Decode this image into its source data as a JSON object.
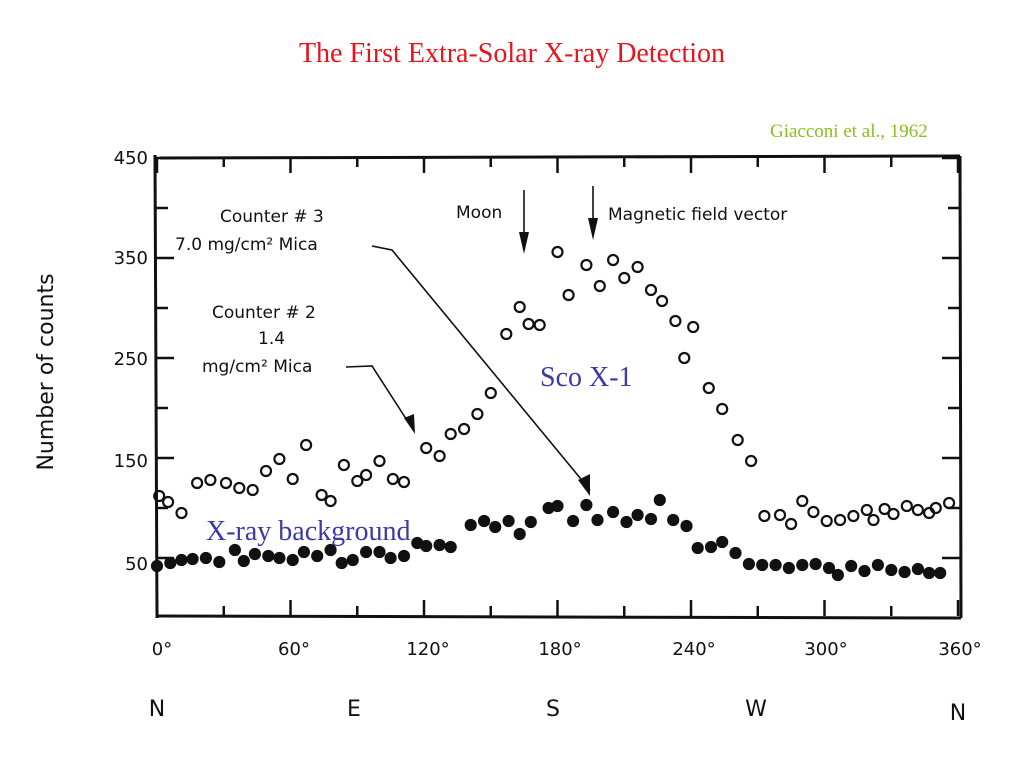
{
  "header": {
    "title": "The First Extra-Solar X-ray Detection",
    "credit": "Giacconi et al., 1962"
  },
  "chart_data": {
    "type": "scatter",
    "title": "The First Extra-Solar X-ray Detection",
    "xlabel": "",
    "ylabel": "Number of counts",
    "xlim": [
      0,
      360
    ],
    "ylim": [
      0,
      450
    ],
    "x_ticks": [
      "0°",
      "60°",
      "120°",
      "180°",
      "240°",
      "300°",
      "360°"
    ],
    "y_ticks": [
      "450",
      "350",
      "250",
      "150",
      "50"
    ],
    "compass_labels": [
      "N",
      "E",
      "S",
      "W",
      "N"
    ],
    "annotations": {
      "counter3_line1": "Counter # 3",
      "counter3_line2": "7.0 mg/cm² Mica",
      "counter2_line1": "Counter # 2",
      "counter2_line2": "1.4",
      "counter2_line3": "mg/cm² Mica",
      "moon": "Moon",
      "magnetic": "Magnetic field vector",
      "sco": "Sco X-1",
      "background": "X-ray background"
    },
    "series": [
      {
        "marker": "open-circle",
        "points": [
          [
            1,
            112
          ],
          [
            5,
            106
          ],
          [
            11,
            95
          ],
          [
            18,
            125
          ],
          [
            24,
            128
          ],
          [
            31,
            125
          ],
          [
            37,
            120
          ],
          [
            43,
            118
          ],
          [
            49,
            137
          ],
          [
            55,
            149
          ],
          [
            61,
            129
          ],
          [
            67,
            163
          ],
          [
            74,
            113
          ],
          [
            78,
            107
          ],
          [
            84,
            143
          ],
          [
            90,
            127
          ],
          [
            94,
            133
          ],
          [
            100,
            147
          ],
          [
            106,
            129
          ],
          [
            111,
            126
          ],
          [
            121,
            160
          ],
          [
            127,
            152
          ],
          [
            132,
            174
          ],
          [
            138,
            179
          ],
          [
            144,
            194
          ],
          [
            150,
            215
          ],
          [
            157,
            274
          ],
          [
            163,
            301
          ],
          [
            167,
            284
          ],
          [
            172,
            283
          ],
          [
            180,
            356
          ],
          [
            185,
            313
          ],
          [
            193,
            343
          ],
          [
            199,
            322
          ],
          [
            205,
            348
          ],
          [
            210,
            330
          ],
          [
            216,
            341
          ],
          [
            222,
            318
          ],
          [
            227,
            307
          ],
          [
            233,
            287
          ],
          [
            237,
            250
          ],
          [
            241,
            281
          ],
          [
            248,
            220
          ],
          [
            254,
            199
          ],
          [
            261,
            168
          ],
          [
            267,
            147
          ],
          [
            273,
            92
          ],
          [
            280,
            93
          ],
          [
            285,
            84
          ],
          [
            290,
            107
          ],
          [
            295,
            96
          ],
          [
            301,
            87
          ],
          [
            307,
            88
          ],
          [
            313,
            92
          ],
          [
            319,
            98
          ],
          [
            322,
            88
          ],
          [
            327,
            99
          ],
          [
            331,
            94
          ],
          [
            337,
            102
          ],
          [
            342,
            98
          ],
          [
            347,
            95
          ],
          [
            350,
            100
          ],
          [
            356,
            105
          ]
        ]
      },
      {
        "marker": "filled-circle",
        "points": [
          [
            0,
            42
          ],
          [
            6,
            45
          ],
          [
            11,
            48
          ],
          [
            16,
            49
          ],
          [
            22,
            50
          ],
          [
            28,
            46
          ],
          [
            35,
            58
          ],
          [
            39,
            47
          ],
          [
            44,
            54
          ],
          [
            50,
            52
          ],
          [
            55,
            50
          ],
          [
            61,
            48
          ],
          [
            66,
            56
          ],
          [
            72,
            52
          ],
          [
            78,
            58
          ],
          [
            83,
            45
          ],
          [
            88,
            48
          ],
          [
            94,
            56
          ],
          [
            100,
            56
          ],
          [
            105,
            50
          ],
          [
            111,
            52
          ],
          [
            117,
            65
          ],
          [
            121,
            62
          ],
          [
            127,
            63
          ],
          [
            132,
            61
          ],
          [
            141,
            83
          ],
          [
            147,
            87
          ],
          [
            152,
            81
          ],
          [
            158,
            87
          ],
          [
            163,
            74
          ],
          [
            168,
            86
          ],
          [
            176,
            100
          ],
          [
            180,
            102
          ],
          [
            187,
            87
          ],
          [
            193,
            103
          ],
          [
            198,
            88
          ],
          [
            205,
            96
          ],
          [
            211,
            86
          ],
          [
            216,
            93
          ],
          [
            222,
            89
          ],
          [
            226,
            108
          ],
          [
            232,
            88
          ],
          [
            238,
            82
          ],
          [
            243,
            60
          ],
          [
            249,
            61
          ],
          [
            254,
            66
          ],
          [
            260,
            55
          ],
          [
            266,
            44
          ],
          [
            272,
            43
          ],
          [
            278,
            43
          ],
          [
            284,
            40
          ],
          [
            290,
            43
          ],
          [
            296,
            44
          ],
          [
            302,
            40
          ],
          [
            306,
            33
          ],
          [
            312,
            42
          ],
          [
            318,
            37
          ],
          [
            324,
            43
          ],
          [
            330,
            38
          ],
          [
            336,
            36
          ],
          [
            342,
            39
          ],
          [
            347,
            35
          ],
          [
            352,
            35
          ]
        ]
      }
    ]
  }
}
